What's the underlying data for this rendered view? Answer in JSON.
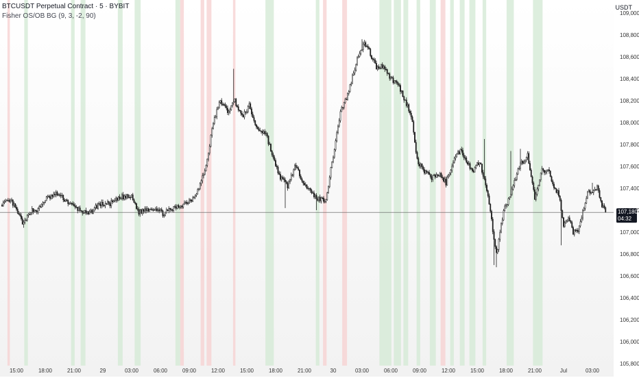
{
  "header": {
    "title": "BTCUSDT Perpetual Contract · 5 · BYBIT",
    "indicator": "Fisher OS/OB BG (9, 3, -2, 90)"
  },
  "currency": "USDT",
  "price_badge": {
    "price": "107,180.1",
    "countdown": "04:32"
  },
  "colors": {
    "candle": "#1c1c1c",
    "bg_top": "#ffffff",
    "bg_bottom": "#f2f2f2",
    "band_green": "#d4ead6",
    "band_red": "#f6d2d2",
    "last_price_line": "#555555",
    "badge_bg": "#131722",
    "axis_text": "#333333"
  },
  "chart_data": {
    "type": "candlestick",
    "title": "BTCUSDT Perpetual Contract · 5 · BYBIT",
    "ylabel": "USDT",
    "ylim": [
      105720,
      109080
    ],
    "y_ticks": [
      105800,
      106000,
      106200,
      106400,
      106600,
      106800,
      107000,
      107200,
      107400,
      107600,
      107800,
      108000,
      108200,
      108400,
      108600,
      108800,
      109000
    ],
    "y_tick_labels": [
      "105,800.0",
      "106,000.0",
      "106,200.0",
      "106,400.0",
      "106,600.0",
      "106,800.0",
      "107,000.0",
      "107,200.0",
      "107,400.0",
      "107,600.0",
      "107,800.0",
      "108,000.0",
      "108,200.0",
      "108,400.0",
      "108,600.0",
      "108,800.0",
      "109,000.0"
    ],
    "x_ticks": [
      {
        "index": 12,
        "label": "15:00"
      },
      {
        "index": 36,
        "label": "18:00"
      },
      {
        "index": 60,
        "label": "21:00"
      },
      {
        "index": 84,
        "label": "29"
      },
      {
        "index": 108,
        "label": "03:00"
      },
      {
        "index": 132,
        "label": "06:00"
      },
      {
        "index": 156,
        "label": "09:00"
      },
      {
        "index": 180,
        "label": "12:00"
      },
      {
        "index": 204,
        "label": "15:00"
      },
      {
        "index": 228,
        "label": "18:00"
      },
      {
        "index": 252,
        "label": "21:00"
      },
      {
        "index": 276,
        "label": "30"
      },
      {
        "index": 300,
        "label": "03:00"
      },
      {
        "index": 324,
        "label": "06:00"
      },
      {
        "index": 348,
        "label": "09:00"
      },
      {
        "index": 372,
        "label": "12:00"
      },
      {
        "index": 396,
        "label": "15:00"
      },
      {
        "index": 420,
        "label": "18:00"
      },
      {
        "index": 444,
        "label": "21:00"
      },
      {
        "index": 468,
        "label": "Jul"
      },
      {
        "index": 492,
        "label": "03:00"
      }
    ],
    "last_price": 107180.1,
    "bar_count": 504,
    "path_anchors": [
      [
        0,
        107260
      ],
      [
        8,
        107280
      ],
      [
        18,
        107070
      ],
      [
        24,
        107200
      ],
      [
        30,
        107200
      ],
      [
        36,
        107300
      ],
      [
        46,
        107350
      ],
      [
        52,
        107300
      ],
      [
        60,
        107230
      ],
      [
        72,
        107160
      ],
      [
        80,
        107250
      ],
      [
        90,
        107260
      ],
      [
        100,
        107320
      ],
      [
        108,
        107320
      ],
      [
        114,
        107180
      ],
      [
        120,
        107210
      ],
      [
        128,
        107220
      ],
      [
        134,
        107170
      ],
      [
        144,
        107220
      ],
      [
        150,
        107250
      ],
      [
        158,
        107300
      ],
      [
        164,
        107400
      ],
      [
        170,
        107600
      ],
      [
        176,
        108000
      ],
      [
        182,
        108200
      ],
      [
        188,
        108100
      ],
      [
        194,
        108200
      ],
      [
        200,
        108050
      ],
      [
        206,
        108150
      ],
      [
        212,
        107950
      ],
      [
        220,
        107900
      ],
      [
        228,
        107600
      ],
      [
        232,
        107500
      ],
      [
        238,
        107420
      ],
      [
        244,
        107600
      ],
      [
        252,
        107450
      ],
      [
        258,
        107350
      ],
      [
        264,
        107300
      ],
      [
        270,
        107300
      ],
      [
        276,
        107700
      ],
      [
        282,
        108100
      ],
      [
        288,
        108250
      ],
      [
        294,
        108500
      ],
      [
        298,
        108650
      ],
      [
        302,
        108720
      ],
      [
        306,
        108650
      ],
      [
        312,
        108500
      ],
      [
        318,
        108520
      ],
      [
        324,
        108400
      ],
      [
        330,
        108350
      ],
      [
        338,
        108150
      ],
      [
        342,
        108000
      ],
      [
        346,
        107650
      ],
      [
        352,
        107550
      ],
      [
        358,
        107500
      ],
      [
        364,
        107530
      ],
      [
        370,
        107450
      ],
      [
        376,
        107650
      ],
      [
        382,
        107750
      ],
      [
        386,
        107680
      ],
      [
        392,
        107550
      ],
      [
        398,
        107650
      ],
      [
        404,
        107400
      ],
      [
        408,
        107100
      ],
      [
        412,
        106800
      ],
      [
        414,
        106920
      ],
      [
        418,
        107200
      ],
      [
        424,
        107330
      ],
      [
        428,
        107500
      ],
      [
        432,
        107620
      ],
      [
        438,
        107700
      ],
      [
        444,
        107300
      ],
      [
        450,
        107560
      ],
      [
        456,
        107550
      ],
      [
        460,
        107400
      ],
      [
        464,
        107350
      ],
      [
        468,
        107050
      ],
      [
        472,
        107150
      ],
      [
        476,
        107000
      ],
      [
        480,
        107000
      ],
      [
        484,
        107200
      ],
      [
        488,
        107360
      ],
      [
        492,
        107350
      ],
      [
        496,
        107400
      ],
      [
        500,
        107250
      ],
      [
        503,
        107180
      ]
    ],
    "spikes": [
      [
        18,
        107040,
        "low"
      ],
      [
        193,
        108490,
        "high"
      ],
      [
        236,
        107220,
        "low"
      ],
      [
        262,
        107200,
        "low"
      ],
      [
        300,
        108760,
        "high"
      ],
      [
        303,
        108740,
        "high"
      ],
      [
        340,
        107950,
        "high"
      ],
      [
        402,
        107850,
        "high"
      ],
      [
        410,
        106700,
        "low"
      ],
      [
        412,
        106680,
        "low"
      ],
      [
        424,
        107740,
        "high"
      ],
      [
        432,
        107760,
        "high"
      ],
      [
        466,
        106880,
        "low"
      ],
      [
        478,
        107000,
        "low"
      ],
      [
        492,
        107450,
        "high"
      ]
    ],
    "bands": [
      {
        "start": 5,
        "end": 6,
        "kind": "red"
      },
      {
        "start": 19,
        "end": 21,
        "kind": "green"
      },
      {
        "start": 58,
        "end": 60,
        "kind": "green"
      },
      {
        "start": 66,
        "end": 69,
        "kind": "green"
      },
      {
        "start": 97,
        "end": 100,
        "kind": "green"
      },
      {
        "start": 111,
        "end": 115,
        "kind": "green"
      },
      {
        "start": 145,
        "end": 148,
        "kind": "green"
      },
      {
        "start": 149,
        "end": 151,
        "kind": "red"
      },
      {
        "start": 166,
        "end": 168,
        "kind": "red"
      },
      {
        "start": 171,
        "end": 174,
        "kind": "red"
      },
      {
        "start": 193,
        "end": 194,
        "kind": "red"
      },
      {
        "start": 220,
        "end": 226,
        "kind": "green"
      },
      {
        "start": 262,
        "end": 264,
        "kind": "green"
      },
      {
        "start": 268,
        "end": 270,
        "kind": "red"
      },
      {
        "start": 284,
        "end": 287,
        "kind": "red"
      },
      {
        "start": 315,
        "end": 324,
        "kind": "green"
      },
      {
        "start": 327,
        "end": 332,
        "kind": "green"
      },
      {
        "start": 335,
        "end": 338,
        "kind": "green"
      },
      {
        "start": 346,
        "end": 348,
        "kind": "green"
      },
      {
        "start": 357,
        "end": 361,
        "kind": "green"
      },
      {
        "start": 366,
        "end": 369,
        "kind": "red"
      },
      {
        "start": 374,
        "end": 376,
        "kind": "green"
      },
      {
        "start": 382,
        "end": 385,
        "kind": "green"
      },
      {
        "start": 390,
        "end": 394,
        "kind": "green"
      },
      {
        "start": 401,
        "end": 403,
        "kind": "green"
      },
      {
        "start": 421,
        "end": 426,
        "kind": "green"
      },
      {
        "start": 443,
        "end": 450,
        "kind": "green"
      }
    ]
  }
}
